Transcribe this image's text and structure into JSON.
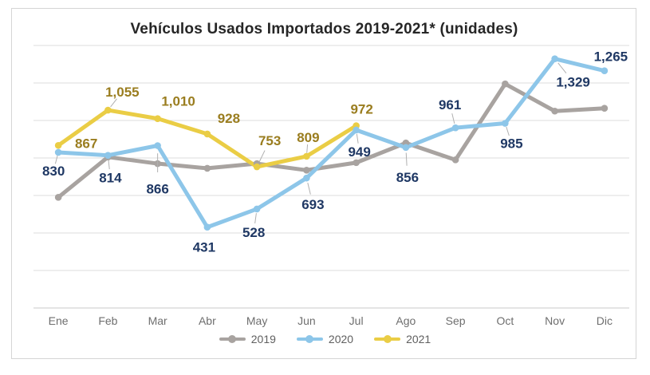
{
  "chart_data": {
    "type": "line",
    "title": "Vehículos Usados Importados 2019-2021* (unidades)",
    "categories": [
      "Ene",
      "Feb",
      "Mar",
      "Abr",
      "May",
      "Jun",
      "Jul",
      "Ago",
      "Sep",
      "Oct",
      "Nov",
      "Dic"
    ],
    "ylim": [
      0,
      1400
    ],
    "gridline_step": 200,
    "grid": true,
    "y_axis_labels_shown": false,
    "legend_position": "bottom",
    "series": [
      {
        "name": "2019",
        "color": "#A8A3A0",
        "data_labels": false,
        "estimated": true,
        "values": [
          590,
          805,
          770,
          745,
          770,
          735,
          775,
          880,
          790,
          1195,
          1050,
          1065
        ]
      },
      {
        "name": "2020",
        "color": "#8DC6E9",
        "label_color": "#1F3864",
        "data_labels": true,
        "values": [
          830,
          814,
          866,
          431,
          528,
          693,
          949,
          856,
          961,
          985,
          1329,
          1265
        ]
      },
      {
        "name": "2021",
        "color": "#EACD45",
        "label_color": "#9A7D1F",
        "data_labels": true,
        "values": [
          867,
          1055,
          1010,
          928,
          753,
          809,
          972
        ]
      }
    ],
    "colors": {
      "title": "#262626",
      "axis_tick": "#6E6E6E",
      "gridline": "#DEDEDE",
      "axis_line": "#C9C9C9",
      "legend_text": "#5F5F5F",
      "leader_line": "#AFAFAF",
      "card_border": "#D5D5D5"
    }
  }
}
